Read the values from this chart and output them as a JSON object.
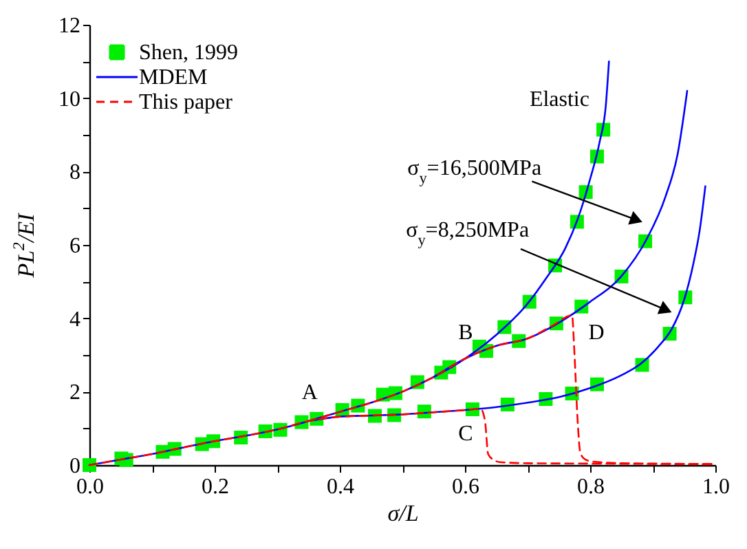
{
  "chart_data": {
    "type": "line",
    "xlabel": "σ/L",
    "ylabel": "PL$^{2}$/EI",
    "xlim": [
      0,
      1
    ],
    "ylim": [
      0,
      12
    ],
    "xticks": [
      {
        "value": 0,
        "label": "0.0"
      },
      {
        "value": 0.1,
        "label": null
      },
      0.2,
      {
        "value": 0.3,
        "label": null
      },
      0.4,
      {
        "value": 0.5,
        "label": null
      },
      0.6,
      {
        "value": 0.7,
        "label": null
      },
      0.8,
      {
        "value": 0.9,
        "label": null
      },
      {
        "value": 1,
        "label": "1.0"
      }
    ],
    "yticks": [
      0,
      {
        "value": 1,
        "label": null
      },
      2,
      {
        "value": 3,
        "label": null
      },
      4,
      {
        "value": 5,
        "label": null
      },
      6,
      {
        "value": 7,
        "label": null
      },
      8,
      {
        "value": 9,
        "label": null
      },
      10,
      {
        "value": 11,
        "label": null
      },
      12
    ],
    "grid": false,
    "legend": "top left",
    "annotations": [
      "Elastic",
      "σ$_{y}$=16,500MPa",
      "σ$_{y}$=8,250MPa",
      "A",
      "B",
      "C",
      "D"
    ],
    "series": [
      {
        "name": "Shen, 1999",
        "type": "scatter",
        "marker": "square",
        "color": "#00ee00",
        "x": [
          0,
          0.051,
          0.059,
          0.117,
          0.136,
          0.18,
          0.198,
          0.242,
          0.281,
          0.305,
          0.339,
          0.363,
          0.404,
          0.429,
          0.456,
          0.469,
          0.487,
          0.489,
          0.524,
          0.535,
          0.562,
          0.575,
          0.612,
          0.623,
          0.634,
          0.663,
          0.668,
          0.686,
          0.703,
          0.729,
          0.744,
          0.746,
          0.771,
          0.779,
          0.786,
          0.793,
          0.811,
          0.811,
          0.821,
          0.85,
          0.883,
          0.888,
          0.927,
          0.952
        ],
        "values": [
          0,
          0.18,
          0.14,
          0.36,
          0.44,
          0.57,
          0.65,
          0.75,
          0.92,
          0.96,
          1.17,
          1.26,
          1.5,
          1.62,
          1.34,
          1.92,
          1.36,
          1.96,
          2.26,
          1.46,
          2.52,
          2.67,
          1.52,
          3.23,
          3.11,
          3.76,
          1.65,
          3.38,
          4.45,
          1.8,
          5.44,
          3.86,
          1.95,
          6.63,
          4.32,
          7.44,
          2.2,
          8.41,
          9.14,
          5.14,
          2.73,
          6.1,
          3.58,
          4.57
        ]
      },
      {
        "name": "MDEM",
        "color": "#0000ff",
        "x": [
          0,
          0.05,
          0.1,
          0.15,
          0.2,
          0.25,
          0.3,
          0.35,
          0.4,
          0.45,
          0.5,
          0.55,
          0.6,
          0.65,
          0.7,
          0.73,
          0.76,
          0.78,
          0.8,
          0.815,
          0.825,
          0.83
        ],
        "values": [
          0,
          0.15,
          0.3,
          0.48,
          0.65,
          0.8,
          0.97,
          1.2,
          1.45,
          1.7,
          2.0,
          2.4,
          2.9,
          3.55,
          4.4,
          5.1,
          5.9,
          6.7,
          7.8,
          8.8,
          9.8,
          11.0
        ]
      },
      {
        "color": "#0000ff",
        "x": [
          0.55,
          0.6,
          0.65,
          0.7,
          0.75,
          0.8,
          0.85,
          0.89,
          0.92,
          0.94,
          0.955
        ],
        "values": [
          2.4,
          2.9,
          3.25,
          3.45,
          3.88,
          4.45,
          5.15,
          6.15,
          7.3,
          8.5,
          10.2
        ]
      },
      {
        "color": "#0000ff",
        "x": [
          0.35,
          0.4,
          0.45,
          0.5,
          0.55,
          0.6,
          0.65,
          0.7,
          0.75,
          0.8,
          0.85,
          0.88,
          0.91,
          0.93,
          0.95,
          0.965,
          0.975,
          0.984
        ],
        "values": [
          1.2,
          1.32,
          1.35,
          1.38,
          1.44,
          1.5,
          1.58,
          1.7,
          1.85,
          2.1,
          2.45,
          2.75,
          3.25,
          3.7,
          4.5,
          5.5,
          6.4,
          7.6
        ]
      },
      {
        "name": "This paper",
        "line_style": "dashed",
        "color": "#ff0000",
        "x": [
          0,
          0.05,
          0.1,
          0.15,
          0.2,
          0.25,
          0.3,
          0.35,
          0.4,
          0.45,
          0.5,
          0.55,
          0.6,
          0.625,
          0.632,
          0.637,
          0.645,
          0.656,
          0.7,
          0.8,
          0.9,
          1.0
        ],
        "values": [
          0,
          0.15,
          0.3,
          0.48,
          0.65,
          0.8,
          0.97,
          1.2,
          1.32,
          1.35,
          1.38,
          1.44,
          1.5,
          1.53,
          1.2,
          0.3,
          0.15,
          0.08,
          0.05,
          0.04,
          0.03,
          0.02
        ]
      },
      {
        "line_style": "dashed",
        "color": "#ff0000",
        "x": [
          0.35,
          0.4,
          0.45,
          0.5,
          0.55,
          0.6,
          0.65,
          0.7,
          0.74,
          0.771,
          0.775,
          0.78,
          0.784,
          0.79,
          0.802,
          0.85,
          0.9,
          1.0
        ],
        "values": [
          1.2,
          1.45,
          1.7,
          2.0,
          2.4,
          2.9,
          3.25,
          3.45,
          3.8,
          4.08,
          3.0,
          1.2,
          0.36,
          0.18,
          0.1,
          0.05,
          0.04,
          0.03
        ]
      }
    ]
  }
}
